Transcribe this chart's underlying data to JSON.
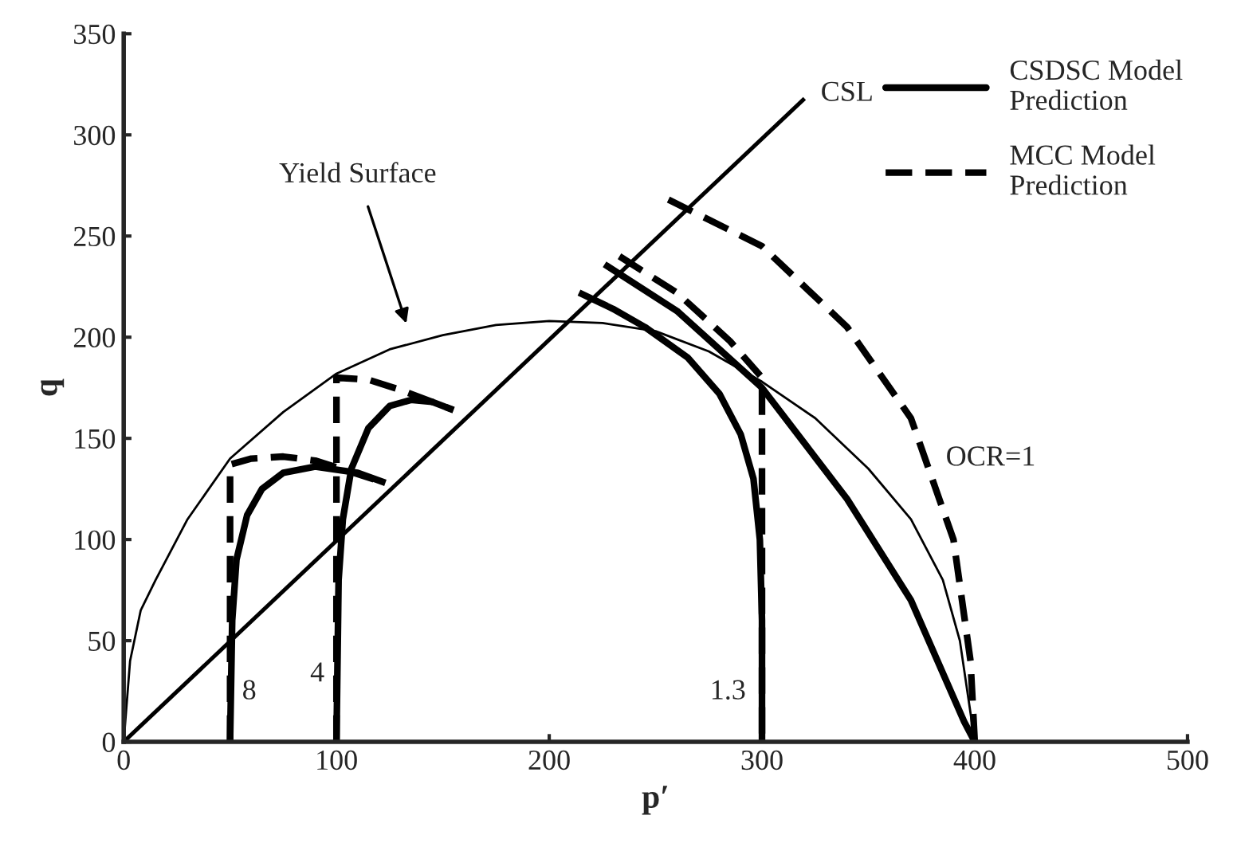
{
  "chart_data": {
    "type": "line",
    "xlabel": "p′",
    "ylabel": "q",
    "xlim": [
      0,
      500
    ],
    "ylim": [
      0,
      350
    ],
    "xticks": [
      0,
      100,
      200,
      300,
      400,
      500
    ],
    "yticks": [
      0,
      50,
      100,
      150,
      200,
      250,
      300,
      350
    ],
    "grid": false,
    "legend": "top right",
    "marker": "none",
    "series": [
      {
        "color": "#000000",
        "line_style": "solid",
        "x": [
          0,
          320
        ],
        "values": [
          0,
          318
        ]
      },
      {
        "color": "#000000",
        "line_style": "solid",
        "x": [
          0,
          3,
          8,
          15,
          30,
          50,
          75,
          100,
          125,
          150,
          175,
          200,
          225,
          250,
          275,
          300,
          325,
          350,
          370,
          385,
          393,
          400
        ],
        "values": [
          0,
          40,
          65,
          80,
          110,
          140,
          163,
          182,
          194,
          201,
          206,
          208,
          207,
          203,
          193,
          178,
          160,
          135,
          110,
          80,
          50,
          0
        ]
      },
      {
        "name": "CSDSC Model Prediction",
        "color": "#000000",
        "line_style": "solid",
        "x": [
          50,
          51,
          53,
          58,
          65,
          75,
          90,
          110,
          123
        ],
        "values": [
          0,
          60,
          90,
          112,
          125,
          133,
          136,
          133,
          128
        ]
      },
      {
        "color": "#000000",
        "line_style": "solid",
        "x": [
          100,
          101,
          103,
          107,
          115,
          125,
          135,
          145,
          155
        ],
        "values": [
          0,
          80,
          110,
          135,
          155,
          166,
          169,
          168,
          164
        ]
      },
      {
        "color": "#000000",
        "line_style": "solid",
        "x": [
          300,
          300,
          299,
          296,
          290,
          280,
          265,
          245,
          230,
          214
        ],
        "values": [
          0,
          60,
          100,
          130,
          152,
          172,
          190,
          205,
          214,
          222
        ]
      },
      {
        "color": "#000000",
        "line_style": "solid",
        "x": [
          226,
          260,
          300,
          340,
          370,
          395,
          400
        ],
        "values": [
          236,
          213,
          175,
          120,
          70,
          10,
          0
        ]
      },
      {
        "name": "MCC Model Prediction",
        "color": "#000000",
        "line_style": "dashed",
        "x": [
          50,
          50,
          60,
          75,
          90,
          105,
          123
        ],
        "values": [
          0,
          137,
          140,
          141,
          139,
          134,
          128
        ]
      },
      {
        "color": "#000000",
        "line_style": "dashed",
        "x": [
          100,
          100,
          115,
          130,
          145,
          155
        ],
        "values": [
          0,
          180,
          179,
          174,
          168,
          164
        ]
      },
      {
        "color": "#000000",
        "line_style": "dashed",
        "x": [
          233,
          260,
          285,
          300,
          300
        ],
        "values": [
          240,
          222,
          198,
          180,
          0
        ]
      },
      {
        "color": "#000000",
        "line_style": "dashed",
        "x": [
          256,
          300,
          340,
          370,
          390,
          398,
          400
        ],
        "values": [
          268,
          245,
          205,
          160,
          100,
          40,
          0
        ]
      }
    ],
    "annotations": [
      "Yield Surface",
      "CSL",
      "8",
      "4",
      "1.3",
      "OCR=1"
    ]
  }
}
